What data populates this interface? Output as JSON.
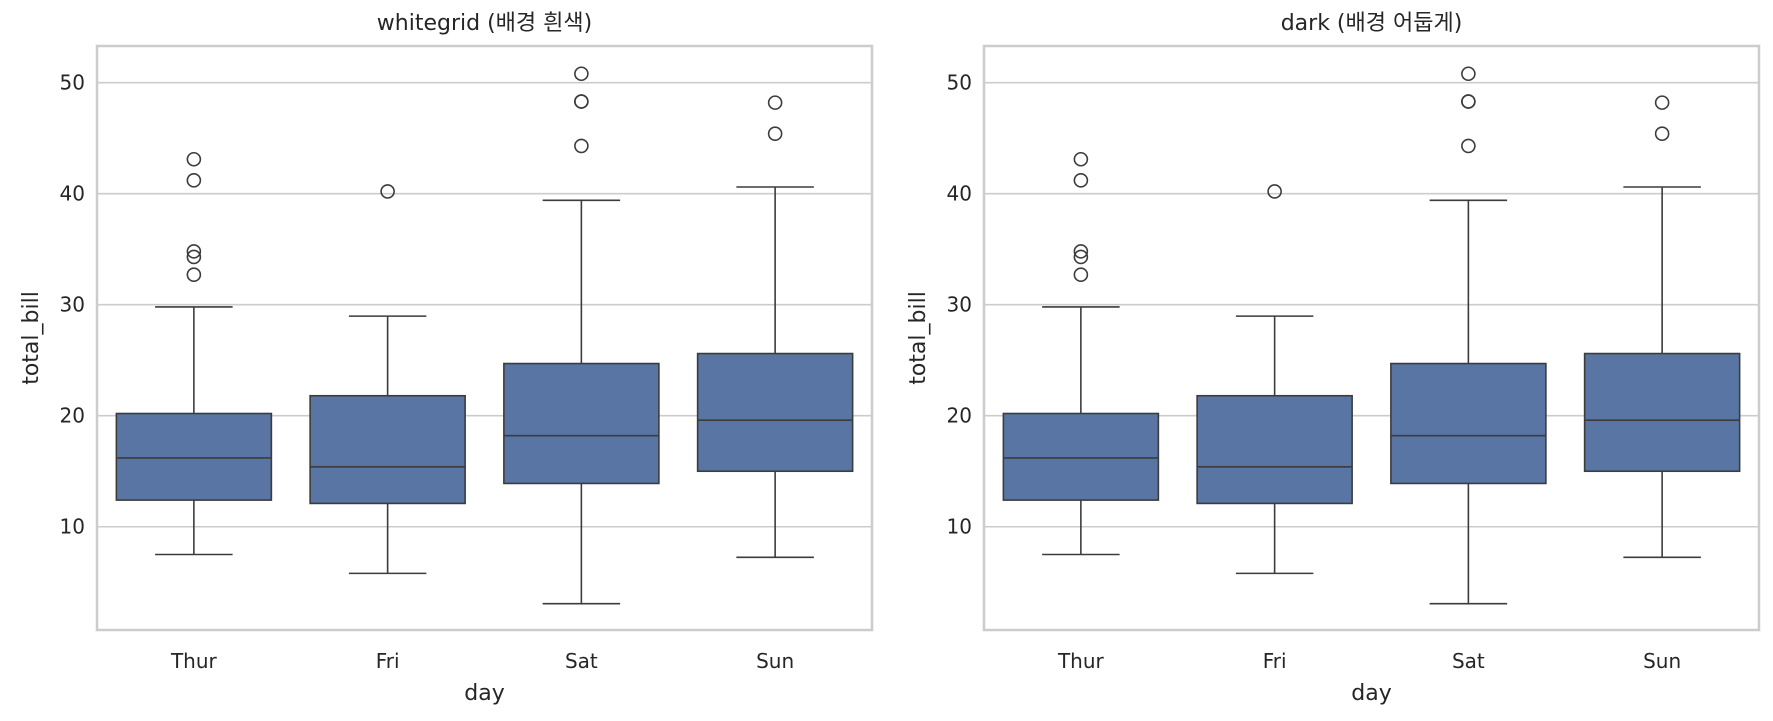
{
  "chart_data": [
    {
      "type": "box",
      "title": "whitegrid (배경 흰색)",
      "xlabel": "day",
      "ylabel": "total_bill",
      "categories": [
        "Thur",
        "Fri",
        "Sat",
        "Sun"
      ],
      "ylim": [
        0.7,
        53.3
      ],
      "yticks": [
        10,
        20,
        30,
        40,
        50
      ],
      "grid": true,
      "boxes": [
        {
          "category": "Thur",
          "whisker_low": 7.5,
          "q1": 12.4,
          "median": 16.2,
          "q3": 20.2,
          "whisker_high": 29.8,
          "outliers": [
            32.7,
            34.3,
            34.8,
            41.2,
            43.1
          ]
        },
        {
          "category": "Fri",
          "whisker_low": 5.8,
          "q1": 12.1,
          "median": 15.4,
          "q3": 21.8,
          "whisker_high": 28.97,
          "outliers": [
            40.2
          ]
        },
        {
          "category": "Sat",
          "whisker_low": 3.07,
          "q1": 13.9,
          "median": 18.2,
          "q3": 24.7,
          "whisker_high": 39.4,
          "outliers": [
            44.3,
            48.3,
            48.3,
            50.8
          ]
        },
        {
          "category": "Sun",
          "whisker_low": 7.25,
          "q1": 15.0,
          "median": 19.6,
          "q3": 25.6,
          "whisker_high": 40.6,
          "outliers": [
            45.4,
            48.2
          ]
        }
      ]
    },
    {
      "type": "box",
      "title": "dark (배경 어둡게)",
      "xlabel": "day",
      "ylabel": "total_bill",
      "categories": [
        "Thur",
        "Fri",
        "Sat",
        "Sun"
      ],
      "ylim": [
        0.7,
        53.3
      ],
      "yticks": [
        10,
        20,
        30,
        40,
        50
      ],
      "grid": true,
      "boxes": [
        {
          "category": "Thur",
          "whisker_low": 7.5,
          "q1": 12.4,
          "median": 16.2,
          "q3": 20.2,
          "whisker_high": 29.8,
          "outliers": [
            32.7,
            34.3,
            34.8,
            41.2,
            43.1
          ]
        },
        {
          "category": "Fri",
          "whisker_low": 5.8,
          "q1": 12.1,
          "median": 15.4,
          "q3": 21.8,
          "whisker_high": 28.97,
          "outliers": [
            40.2
          ]
        },
        {
          "category": "Sat",
          "whisker_low": 3.07,
          "q1": 13.9,
          "median": 18.2,
          "q3": 24.7,
          "whisker_high": 39.4,
          "outliers": [
            44.3,
            48.3,
            48.3,
            50.8
          ]
        },
        {
          "category": "Sun",
          "whisker_low": 7.25,
          "q1": 15.0,
          "median": 19.6,
          "q3": 25.6,
          "whisker_high": 40.6,
          "outliers": [
            45.4,
            48.2
          ]
        }
      ]
    }
  ],
  "colors": {
    "box_fill": "#5875a4",
    "line": "#3c3c3c",
    "grid": "#cccccc",
    "spine": "#cccccc",
    "text": "#262626"
  }
}
